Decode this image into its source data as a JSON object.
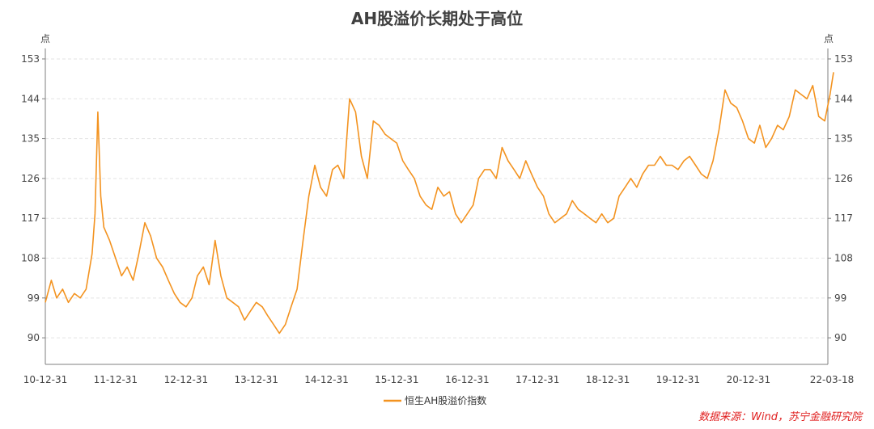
{
  "chart_data": {
    "type": "line",
    "title": "AH股溢价长期处于高位",
    "y_unit_left": "点",
    "y_unit_right": "点",
    "ylim": [
      84,
      155
    ],
    "yticks": [
      90,
      99,
      108,
      117,
      126,
      135,
      144,
      153
    ],
    "xticks": [
      "10-12-31",
      "11-12-31",
      "12-12-31",
      "13-12-31",
      "14-12-31",
      "15-12-31",
      "16-12-31",
      "17-12-31",
      "18-12-31",
      "19-12-31",
      "20-12-31",
      "22-03-18"
    ],
    "grid": "horizontal dashed",
    "legend_position": "bottom-center",
    "series": [
      {
        "name": "恒生AH股溢价指数",
        "color": "#f39320",
        "x": [
          "2010-12-31",
          "2011-01-31",
          "2011-02-28",
          "2011-03-31",
          "2011-04-30",
          "2011-05-31",
          "2011-06-30",
          "2011-07-31",
          "2011-08-31",
          "2011-09-15",
          "2011-09-30",
          "2011-10-15",
          "2011-10-31",
          "2011-11-30",
          "2011-12-31",
          "2012-01-31",
          "2012-02-29",
          "2012-03-31",
          "2012-04-30",
          "2012-05-31",
          "2012-06-30",
          "2012-07-31",
          "2012-08-31",
          "2012-09-30",
          "2012-10-31",
          "2012-11-30",
          "2012-12-31",
          "2013-01-31",
          "2013-02-28",
          "2013-03-31",
          "2013-04-30",
          "2013-05-31",
          "2013-06-30",
          "2013-07-31",
          "2013-08-31",
          "2013-09-30",
          "2013-10-31",
          "2013-11-30",
          "2013-12-31",
          "2014-01-31",
          "2014-02-28",
          "2014-03-31",
          "2014-04-30",
          "2014-05-31",
          "2014-06-30",
          "2014-07-31",
          "2014-08-31",
          "2014-09-30",
          "2014-10-31",
          "2014-11-30",
          "2014-12-31",
          "2015-01-31",
          "2015-02-28",
          "2015-03-31",
          "2015-04-30",
          "2015-05-31",
          "2015-06-30",
          "2015-07-31",
          "2015-08-31",
          "2015-09-30",
          "2015-10-31",
          "2015-11-30",
          "2015-12-31",
          "2016-01-31",
          "2016-02-29",
          "2016-03-31",
          "2016-04-30",
          "2016-05-31",
          "2016-06-30",
          "2016-07-31",
          "2016-08-31",
          "2016-09-30",
          "2016-10-31",
          "2016-11-30",
          "2016-12-31",
          "2017-01-31",
          "2017-02-28",
          "2017-03-31",
          "2017-04-30",
          "2017-05-31",
          "2017-06-30",
          "2017-07-31",
          "2017-08-31",
          "2017-09-30",
          "2017-10-31",
          "2017-11-30",
          "2017-12-31",
          "2018-01-31",
          "2018-02-28",
          "2018-03-31",
          "2018-04-30",
          "2018-05-31",
          "2018-06-30",
          "2018-07-31",
          "2018-08-31",
          "2018-09-30",
          "2018-10-31",
          "2018-11-30",
          "2018-12-31",
          "2019-01-31",
          "2019-02-28",
          "2019-03-31",
          "2019-04-30",
          "2019-05-31",
          "2019-06-30",
          "2019-07-31",
          "2019-08-31",
          "2019-09-30",
          "2019-10-31",
          "2019-11-30",
          "2019-12-31",
          "2020-01-31",
          "2020-02-29",
          "2020-03-31",
          "2020-04-30",
          "2020-05-31",
          "2020-06-30",
          "2020-07-31",
          "2020-08-31",
          "2020-09-30",
          "2020-10-31",
          "2020-11-30",
          "2020-12-31",
          "2021-01-31",
          "2021-02-28",
          "2021-03-31",
          "2021-04-30",
          "2021-05-31",
          "2021-06-30",
          "2021-07-31",
          "2021-08-31",
          "2021-09-30",
          "2021-10-31",
          "2021-11-30",
          "2021-12-31",
          "2022-01-31",
          "2022-02-28",
          "2022-03-18"
        ],
        "values": [
          98,
          103,
          99,
          101,
          98,
          100,
          99,
          101,
          109,
          118,
          141,
          122,
          115,
          112,
          108,
          104,
          106,
          103,
          109,
          116,
          113,
          108,
          106,
          103,
          100,
          98,
          97,
          99,
          104,
          106,
          102,
          112,
          104,
          99,
          98,
          97,
          94,
          96,
          98,
          97,
          95,
          93,
          91,
          93,
          97,
          101,
          112,
          122,
          129,
          124,
          122,
          128,
          129,
          126,
          144,
          141,
          131,
          126,
          139,
          138,
          136,
          135,
          134,
          130,
          128,
          126,
          122,
          120,
          119,
          124,
          122,
          123,
          118,
          116,
          118,
          120,
          126,
          128,
          128,
          126,
          133,
          130,
          128,
          126,
          130,
          127,
          124,
          122,
          118,
          116,
          117,
          118,
          121,
          119,
          118,
          117,
          116,
          118,
          116,
          117,
          122,
          124,
          126,
          124,
          127,
          129,
          129,
          131,
          129,
          129,
          128,
          130,
          131,
          129,
          127,
          126,
          130,
          137,
          146,
          143,
          142,
          139,
          135,
          134,
          138,
          133,
          135,
          138,
          137,
          140,
          146,
          145,
          144,
          147,
          140,
          139,
          145,
          150
        ]
      }
    ]
  },
  "source_note": "数据来源：Wind，苏宁金融研究院"
}
